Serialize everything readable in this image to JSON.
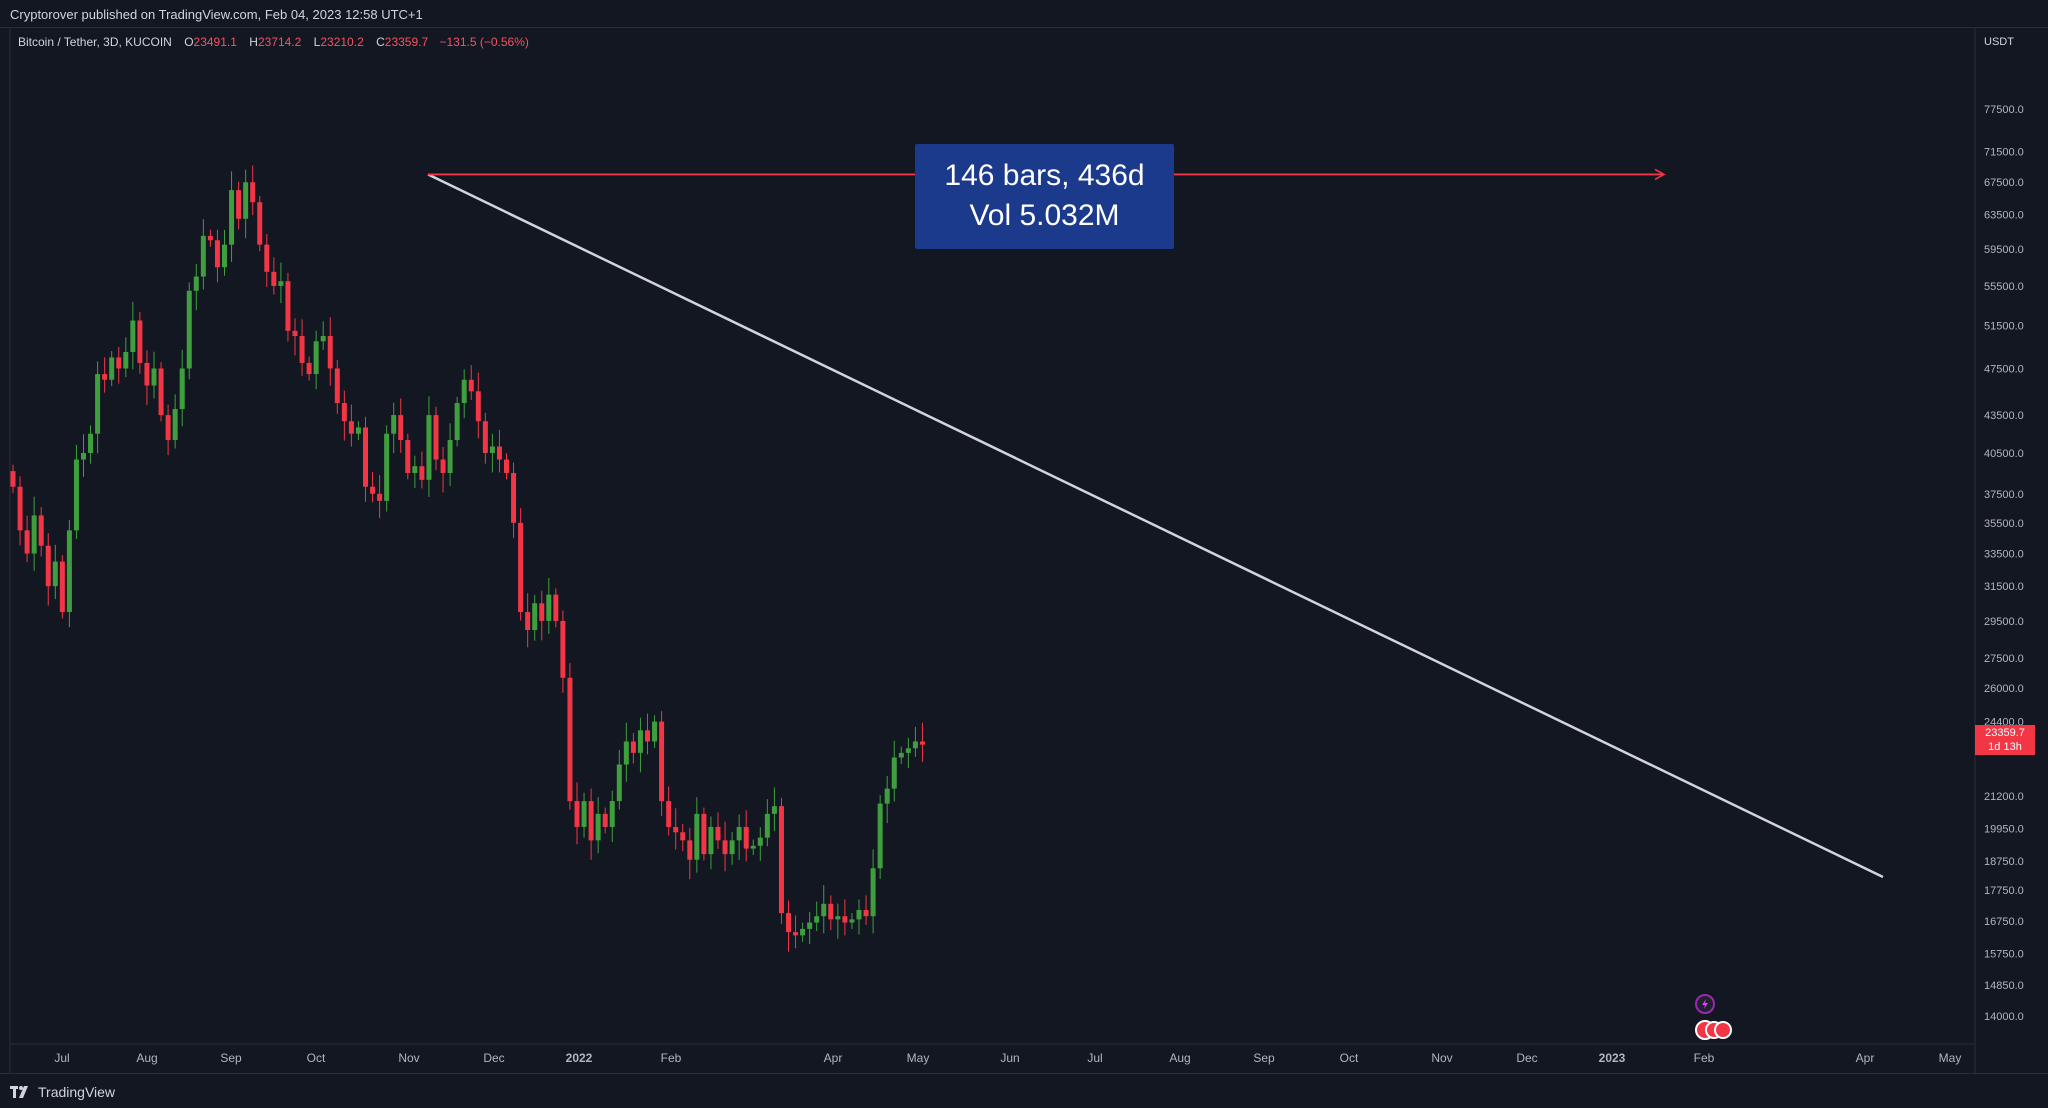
{
  "header": {
    "published": "Cryptorover published on TradingView.com, Feb 04, 2023 12:58 UTC+1"
  },
  "legend": {
    "symbol": "Bitcoin / Tether, 3D, KUCOIN",
    "open_label": "O",
    "open": "23491.1",
    "high_label": "H",
    "high": "23714.2",
    "low_label": "L",
    "low": "23210.2",
    "close_label": "C",
    "close": "23359.7",
    "change": "−131.5 (−0.56%)"
  },
  "measure": {
    "line1": "146 bars, 436d",
    "line2": "Vol 5.032M"
  },
  "price_tag": {
    "price": "23359.7",
    "countdown": "1d 13h"
  },
  "footer": {
    "brand": "TradingView"
  },
  "colors": {
    "background": "#131722",
    "up": "#26a69a",
    "up_candle": "#3f9f3f",
    "down": "#f23645",
    "trendline": "#d1d4dc",
    "measure_arrow": "#f23645",
    "measure_box": "#1c3a8c"
  },
  "chart_data": {
    "type": "candlestick",
    "y_axis_currency": "USDT",
    "y_ticks": [
      "77500.0",
      "71500.0",
      "67500.0",
      "63500.0",
      "59500.0",
      "55500.0",
      "51500.0",
      "47500.0",
      "43500.0",
      "40500.0",
      "37500.0",
      "35500.0",
      "33500.0",
      "31500.0",
      "29500.0",
      "27500.0",
      "26000.0",
      "24400.0",
      "21200.0",
      "19950.0",
      "18750.0",
      "17750.0",
      "16750.0",
      "15750.0",
      "14850.0",
      "14000.0"
    ],
    "x_ticks": [
      {
        "label": "Jul",
        "bold": false
      },
      {
        "label": "Aug",
        "bold": false
      },
      {
        "label": "Sep",
        "bold": false
      },
      {
        "label": "Oct",
        "bold": false
      },
      {
        "label": "Nov",
        "bold": false
      },
      {
        "label": "Dec",
        "bold": false
      },
      {
        "label": "2022",
        "bold": true
      },
      {
        "label": "Feb",
        "bold": false
      },
      {
        "label": "Apr",
        "bold": false
      },
      {
        "label": "May",
        "bold": false
      },
      {
        "label": "Jun",
        "bold": false
      },
      {
        "label": "Jul",
        "bold": false
      },
      {
        "label": "Aug",
        "bold": false
      },
      {
        "label": "Sep",
        "bold": false
      },
      {
        "label": "Oct",
        "bold": false
      },
      {
        "label": "Nov",
        "bold": false
      },
      {
        "label": "Dec",
        "bold": false
      },
      {
        "label": "2023",
        "bold": true
      },
      {
        "label": "Feb",
        "bold": false
      },
      {
        "label": "Apr",
        "bold": false
      },
      {
        "label": "May",
        "bold": false
      }
    ],
    "close_series": [
      38000,
      35000,
      33500,
      36000,
      34000,
      31500,
      33000,
      30000,
      35000,
      40000,
      40500,
      42000,
      47000,
      46500,
      48500,
      47500,
      49000,
      52000,
      48000,
      46000,
      47500,
      43500,
      41500,
      44000,
      47500,
      55000,
      56500,
      61000,
      60500,
      57500,
      60000,
      66500,
      63000,
      67500,
      65000,
      60000,
      57000,
      55500,
      56000,
      51000,
      50500,
      48000,
      47000,
      50000,
      50500,
      47500,
      44500,
      43000,
      42000,
      42500,
      38000,
      37500,
      37000,
      42000,
      43500,
      41500,
      39000,
      39500,
      38500,
      43500,
      40000,
      39000,
      41500,
      44500,
      46500,
      45500,
      43000,
      40500,
      41000,
      40000,
      39000,
      35500,
      30000,
      29000,
      30500,
      29500,
      31000,
      29500,
      26500,
      21000,
      20000,
      21000,
      19500,
      20500,
      20000,
      21000,
      22500,
      23500,
      23000,
      24000,
      23500,
      24400,
      21000,
      20000,
      19800,
      19500,
      18800,
      20500,
      19000,
      20000,
      19500,
      19000,
      19500,
      20000,
      19200,
      19300,
      19600,
      20500,
      20800,
      17000,
      16400,
      16300,
      16500,
      16700,
      16900,
      17300,
      16800,
      16900,
      16700,
      16800,
      17100,
      16900,
      18500,
      20900,
      21500,
      22800,
      23000,
      23200,
      23500,
      23359.7
    ],
    "trendline": {
      "from_price": 68500,
      "to_price": 18200
    },
    "horizontal_ray_price": 68500
  }
}
